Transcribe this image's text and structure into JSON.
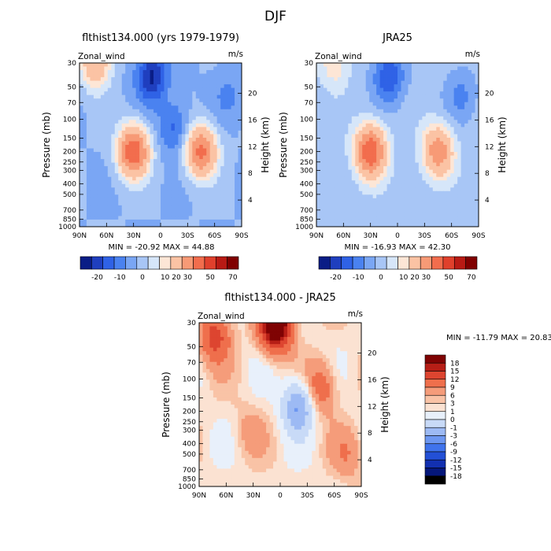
{
  "figure": {
    "title": "DJF"
  },
  "colors": {
    "scale_main": [
      "#0a1d86",
      "#1f3fbf",
      "#2f62e6",
      "#4a82f0",
      "#7aa6f4",
      "#a8c6f6",
      "#d6e6f9",
      "#fde6d6",
      "#fbc3a4",
      "#f79a76",
      "#f26d4d",
      "#e0402c",
      "#b81a14",
      "#800000"
    ],
    "scale_diff": [
      "#05177a",
      "#1230b0",
      "#2350d6",
      "#3f73ec",
      "#6d97f1",
      "#9dbaf4",
      "#c8daf7",
      "#e8f0fb",
      "#fbe2d2",
      "#f9c3a6",
      "#f59c7a",
      "#ef6f4c",
      "#dd4530",
      "#b61e16",
      "#7f0303"
    ]
  },
  "chart_data": [
    {
      "type": "heatmap",
      "name": "model",
      "title": "flthist134.000 (yrs 1979-1979)",
      "var_label": "Zonal_wind",
      "units": "m/s",
      "ylabel": "Pressure (mb)",
      "ylabel_right": "Height (km)",
      "x_ticks": [
        "90N",
        "60N",
        "30N",
        "0",
        "30S",
        "60S",
        "90S"
      ],
      "x_values": [
        90,
        60,
        30,
        0,
        -30,
        -60,
        -90
      ],
      "y_ticks": [
        "30",
        "50",
        "70",
        "100",
        "150",
        "200",
        "250",
        "300",
        "400",
        "500",
        "700",
        "850",
        "1000"
      ],
      "y_values": [
        30,
        50,
        70,
        100,
        150,
        200,
        250,
        300,
        400,
        500,
        700,
        850,
        1000
      ],
      "ylim": [
        1000,
        30
      ],
      "y_right_ticks": [
        "20",
        "16",
        "12",
        "8",
        "4"
      ],
      "y_right_values": [
        20,
        16,
        12,
        8,
        4
      ],
      "min_label": "MIN = -20.92",
      "max_label": "MAX =  44.88",
      "contour_levels": [
        "-20",
        "-10",
        "0",
        "10",
        "20",
        "30",
        "50",
        "70"
      ],
      "level_values": [
        -25,
        -20,
        -15,
        -10,
        -5,
        0,
        5,
        10,
        20,
        30,
        40,
        50,
        60,
        70
      ],
      "features": [
        {
          "lat": 72,
          "p": 30,
          "value": 25
        },
        {
          "lat": 30,
          "p": 200,
          "value": 44
        },
        {
          "lat": -45,
          "p": 200,
          "value": 38
        },
        {
          "lat": 10,
          "p": 40,
          "value": -21
        },
        {
          "lat": -15,
          "p": 120,
          "value": -12
        },
        {
          "lat": -75,
          "p": 60,
          "value": -6
        }
      ],
      "base": -5
    },
    {
      "type": "heatmap",
      "name": "reanalysis",
      "title": "JRA25",
      "var_label": "Zonal_wind",
      "units": "m/s",
      "ylabel": "Pressure (mb)",
      "ylabel_right": "Height (km)",
      "x_ticks": [
        "90N",
        "60N",
        "30N",
        "0",
        "30S",
        "60S",
        "90S"
      ],
      "x_values": [
        90,
        60,
        30,
        0,
        -30,
        -60,
        -90
      ],
      "y_ticks": [
        "30",
        "50",
        "70",
        "100",
        "150",
        "200",
        "250",
        "300",
        "400",
        "500",
        "700",
        "850",
        "1000"
      ],
      "y_values": [
        30,
        50,
        70,
        100,
        150,
        200,
        250,
        300,
        400,
        500,
        700,
        850,
        1000
      ],
      "ylim": [
        1000,
        30
      ],
      "y_right_ticks": [
        "20",
        "16",
        "12",
        "8",
        "4"
      ],
      "y_right_values": [
        20,
        16,
        12,
        8,
        4
      ],
      "min_label": "MIN = -16.93",
      "max_label": "MAX =  42.30",
      "contour_levels": [
        "-20",
        "-10",
        "0",
        "10",
        "20",
        "30",
        "50",
        "70"
      ],
      "level_values": [
        -25,
        -20,
        -15,
        -10,
        -5,
        0,
        5,
        10,
        20,
        30,
        40,
        50,
        60,
        70
      ],
      "features": [
        {
          "lat": 70,
          "p": 30,
          "value": 12
        },
        {
          "lat": 30,
          "p": 200,
          "value": 42
        },
        {
          "lat": -45,
          "p": 200,
          "value": 30
        },
        {
          "lat": 10,
          "p": 40,
          "value": -17
        },
        {
          "lat": -70,
          "p": 60,
          "value": -8
        }
      ],
      "base": -3
    },
    {
      "type": "heatmap",
      "name": "difference",
      "title": "flthist134.000 - JRA25",
      "var_label": "Zonal_wind",
      "units": "m/s",
      "ylabel": "Pressure (mb)",
      "ylabel_right": "Height (km)",
      "x_ticks": [
        "90N",
        "60N",
        "30N",
        "0",
        "30S",
        "60S",
        "90S"
      ],
      "x_values": [
        90,
        60,
        30,
        0,
        -30,
        -60,
        -90
      ],
      "y_ticks": [
        "30",
        "50",
        "70",
        "100",
        "150",
        "200",
        "250",
        "300",
        "400",
        "500",
        "700",
        "850",
        "1000"
      ],
      "y_values": [
        30,
        50,
        70,
        100,
        150,
        200,
        250,
        300,
        400,
        500,
        700,
        850,
        1000
      ],
      "ylim": [
        1000,
        30
      ],
      "y_right_ticks": [
        "20",
        "16",
        "12",
        "8",
        "4"
      ],
      "y_right_values": [
        20,
        16,
        12,
        8,
        4
      ],
      "min_label": "MIN = -11.79",
      "max_label": "MAX =  20.83",
      "contour_levels": [
        "18",
        "15",
        "12",
        "9",
        "6",
        "3",
        "1",
        "0",
        "-1",
        "-3",
        "-6",
        "-9",
        "-12",
        "-15",
        "-18"
      ],
      "level_values": [
        -21,
        -18,
        -15,
        -12,
        -9,
        -6,
        -3,
        -1,
        0,
        1,
        3,
        6,
        9,
        12,
        15,
        18
      ],
      "features": [
        {
          "lat": 5,
          "p": 30,
          "value": 20
        },
        {
          "lat": 72,
          "p": 40,
          "value": 8
        },
        {
          "lat": -45,
          "p": 120,
          "value": 6
        },
        {
          "lat": -20,
          "p": 180,
          "value": -9
        },
        {
          "lat": 35,
          "p": 300,
          "value": 2
        },
        {
          "lat": -75,
          "p": 500,
          "value": 3
        }
      ],
      "base": -0.5
    }
  ]
}
